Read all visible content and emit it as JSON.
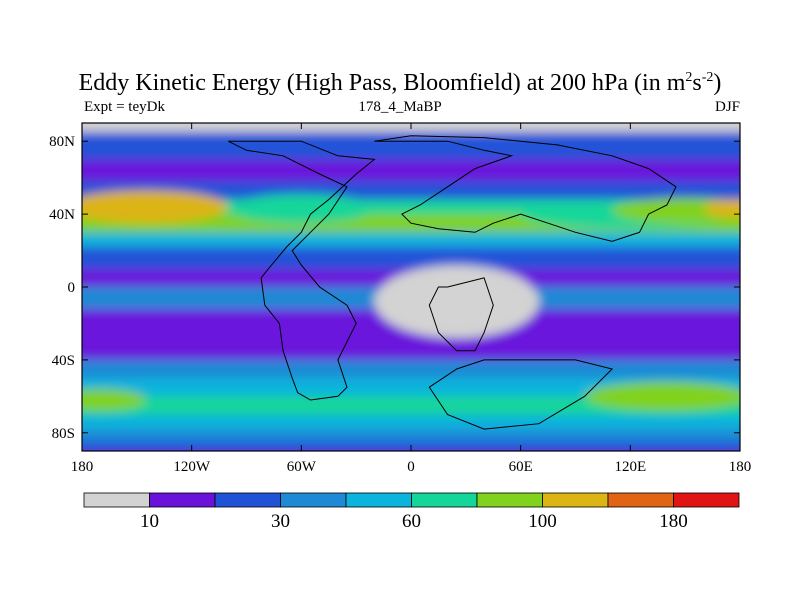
{
  "chart_data": {
    "type": "filled-contour-map",
    "title_main": "Eddy Kinetic Energy (High Pass, Bloomfield) at 200 hPa (in m",
    "title_units_exp1": "2",
    "title_units_s": "s",
    "title_units_exp2": "-2",
    "title_close": ")",
    "subtitle_left": "Expt = teyDk",
    "subtitle_center": "178_4_MaBP",
    "subtitle_right": "DJF",
    "x_ticks": [
      "180",
      "120W",
      "60W",
      "0",
      "60E",
      "120E",
      "180"
    ],
    "x_tick_values": [
      -180,
      -120,
      -60,
      0,
      60,
      120,
      180
    ],
    "y_ticks": [
      "80N",
      "40N",
      "0",
      "40S",
      "80S"
    ],
    "y_tick_values": [
      80,
      40,
      0,
      -40,
      -80
    ],
    "xlim": [
      -180,
      180
    ],
    "ylim": [
      -90,
      90
    ],
    "colorbar": {
      "colors": [
        "#d3d3d3",
        "#6a12dc",
        "#2052d8",
        "#1e8ad6",
        "#0ab4dc",
        "#14d69a",
        "#80d21c",
        "#dcb414",
        "#e06414",
        "#e01414"
      ],
      "labels": [
        "10",
        "30",
        "60",
        "100",
        "180"
      ],
      "label_after_box": [
        1,
        3,
        5,
        7,
        9
      ]
    },
    "bands": [
      {
        "lat": 90,
        "level": 0
      },
      {
        "lat": 85,
        "level": 2
      },
      {
        "lat": 70,
        "level": 1
      },
      {
        "lat": 58,
        "level": 2
      },
      {
        "lat": 48,
        "level": 5
      },
      {
        "lat": 40,
        "level": 6
      },
      {
        "lat": 30,
        "level": 4
      },
      {
        "lat": 22,
        "level": 2
      },
      {
        "lat": 10,
        "level": 1
      },
      {
        "lat": 0,
        "level": 3
      },
      {
        "lat": -12,
        "level": 1
      },
      {
        "lat": -30,
        "level": 1
      },
      {
        "lat": -40,
        "level": 3
      },
      {
        "lat": -50,
        "level": 4
      },
      {
        "lat": -60,
        "level": 5
      },
      {
        "lat": -70,
        "level": 4
      },
      {
        "lat": -78,
        "level": 3
      },
      {
        "lat": -85,
        "level": 2
      },
      {
        "lat": -90,
        "level": 2
      }
    ],
    "features": [
      {
        "name": "nh-storm-track-core",
        "level": 8,
        "lon": -140,
        "lat": 45,
        "rlon": 22,
        "rlat": 5
      },
      {
        "name": "nh-storm-track-pacific",
        "level": 7,
        "lon": -145,
        "lat": 44,
        "rlon": 45,
        "rlat": 9
      },
      {
        "name": "nh-storm-track-atlantic",
        "level": 5,
        "lon": -60,
        "lat": 43,
        "rlon": 40,
        "rlat": 8
      },
      {
        "name": "nh-storm-track-east",
        "level": 5,
        "lon": 120,
        "lat": 40,
        "rlon": 60,
        "rlat": 8
      },
      {
        "name": "nh-storm-track-east-core",
        "level": 6,
        "lon": 150,
        "lat": 42,
        "rlon": 40,
        "rlat": 7
      },
      {
        "name": "nh-storm-track-east-peak",
        "level": 7,
        "lon": 178,
        "lat": 43,
        "rlon": 18,
        "rlat": 5
      },
      {
        "name": "sh-storm-track-west",
        "level": 6,
        "lon": -170,
        "lat": -62,
        "rlon": 25,
        "rlat": 6
      },
      {
        "name": "sh-storm-track-east",
        "level": 6,
        "lon": 140,
        "lat": -60,
        "rlon": 45,
        "rlat": 8
      },
      {
        "name": "tropical-min-region",
        "level": 0,
        "lon": 25,
        "lat": -8,
        "rlon": 45,
        "rlat": 20
      }
    ],
    "land_outline": [
      [
        [
          -100,
          80
        ],
        [
          -60,
          80
        ],
        [
          -40,
          72
        ],
        [
          -20,
          70
        ],
        [
          -30,
          62
        ],
        [
          -45,
          48
        ],
        [
          -55,
          40
        ],
        [
          -60,
          30
        ],
        [
          -68,
          22
        ],
        [
          -78,
          10
        ],
        [
          -82,
          5
        ],
        [
          -80,
          -10
        ],
        [
          -72,
          -20
        ],
        [
          -70,
          -35
        ],
        [
          -65,
          -50
        ],
        [
          -62,
          -58
        ],
        [
          -55,
          -62
        ],
        [
          -40,
          -60
        ],
        [
          -35,
          -55
        ],
        [
          -40,
          -40
        ],
        [
          -30,
          -20
        ],
        [
          -35,
          -10
        ],
        [
          -50,
          0
        ],
        [
          -60,
          12
        ],
        [
          -65,
          20
        ],
        [
          -55,
          30
        ],
        [
          -45,
          40
        ],
        [
          -35,
          55
        ],
        [
          -50,
          62
        ],
        [
          -70,
          72
        ],
        [
          -90,
          75
        ],
        [
          -100,
          80
        ]
      ],
      [
        [
          -20,
          80
        ],
        [
          20,
          80
        ],
        [
          40,
          75
        ],
        [
          55,
          72
        ],
        [
          35,
          65
        ],
        [
          20,
          55
        ],
        [
          5,
          45
        ],
        [
          -5,
          40
        ],
        [
          0,
          35
        ],
        [
          15,
          32
        ],
        [
          35,
          30
        ],
        [
          45,
          35
        ],
        [
          60,
          40
        ],
        [
          75,
          35
        ],
        [
          90,
          30
        ],
        [
          110,
          25
        ],
        [
          125,
          30
        ],
        [
          130,
          40
        ],
        [
          140,
          45
        ],
        [
          145,
          55
        ],
        [
          130,
          65
        ],
        [
          110,
          72
        ],
        [
          80,
          78
        ],
        [
          40,
          82
        ],
        [
          0,
          83
        ],
        [
          -20,
          80
        ]
      ],
      [
        [
          20,
          0
        ],
        [
          40,
          5
        ],
        [
          45,
          -10
        ],
        [
          40,
          -25
        ],
        [
          35,
          -35
        ],
        [
          25,
          -35
        ],
        [
          15,
          -25
        ],
        [
          10,
          -10
        ],
        [
          15,
          0
        ],
        [
          20,
          0
        ]
      ],
      [
        [
          40,
          -40
        ],
        [
          90,
          -40
        ],
        [
          110,
          -45
        ],
        [
          95,
          -60
        ],
        [
          70,
          -75
        ],
        [
          40,
          -78
        ],
        [
          20,
          -70
        ],
        [
          10,
          -55
        ],
        [
          25,
          -45
        ],
        [
          40,
          -40
        ]
      ]
    ]
  }
}
